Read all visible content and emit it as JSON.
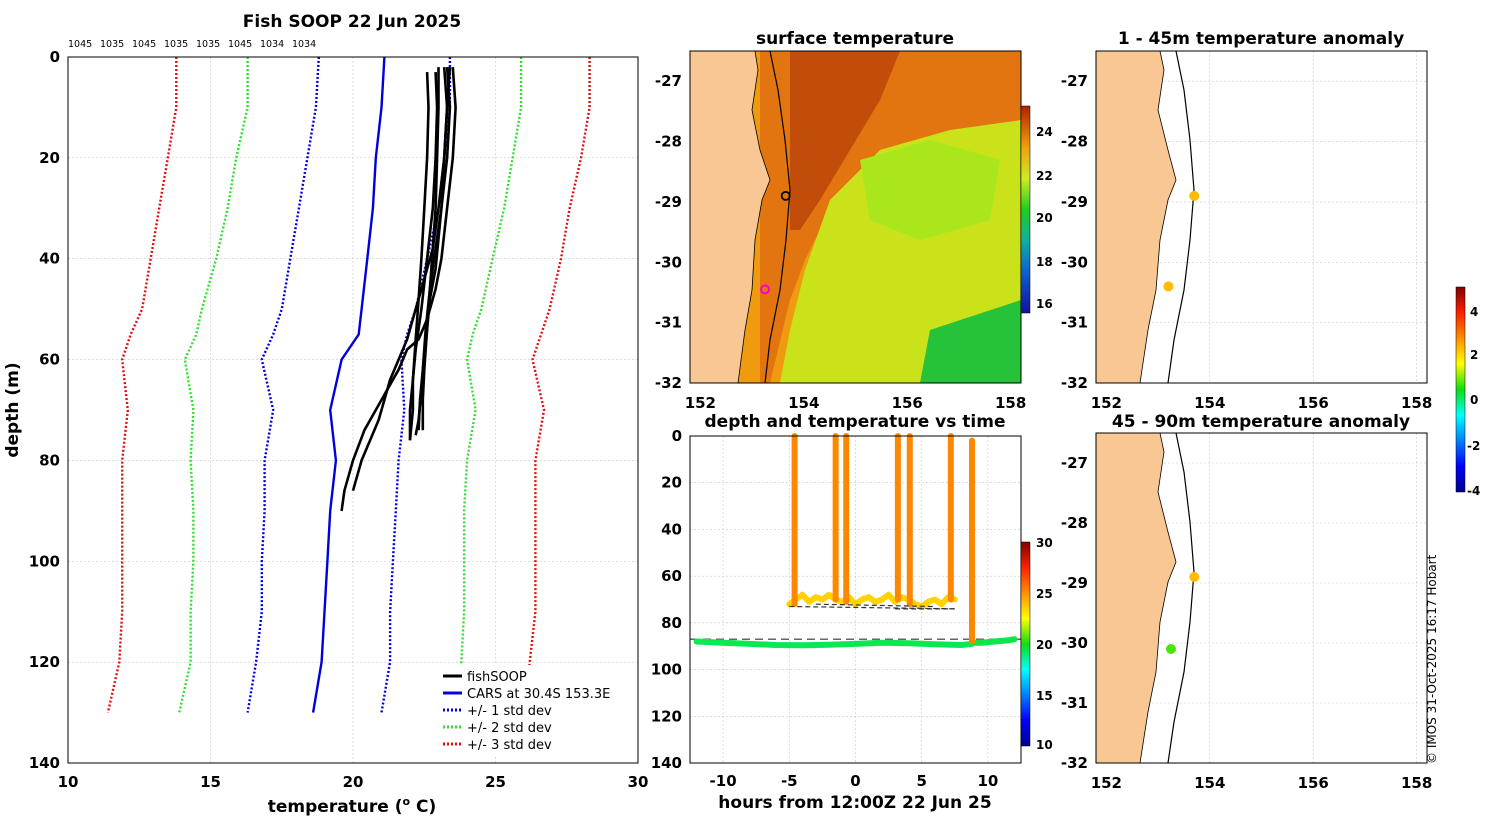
{
  "colors": {
    "land": "#f9c794",
    "grid": "#c8c8c8",
    "cars": "#0000dd",
    "std1": "#0000dd",
    "std2": "#33dd33",
    "std3": "#dd1111",
    "fish": "#000000",
    "pink": "#ff00cc"
  },
  "profile_panel": {
    "title": "Fish SOOP 22 Jun 2025",
    "xlabel": "temperature (",
    "xlabel_sup": "o",
    "xlabel_tail": " C)",
    "ylabel": "depth (m)",
    "top_labels": [
      "1045",
      "1035",
      "1045",
      "1035",
      "1035",
      "1045",
      "1034",
      "1034"
    ],
    "legend": [
      {
        "label": "fishSOOP",
        "style": "fish"
      },
      {
        "label": "CARS at 30.4S 153.3E",
        "style": "cars"
      },
      {
        "label": "+/- 1 std dev",
        "style": "std1"
      },
      {
        "label": "+/- 2 std dev",
        "style": "std2"
      },
      {
        "label": "+/- 3 std dev",
        "style": "std3"
      }
    ]
  },
  "sst_panel": {
    "title": "surface temperature",
    "colorbar_ticks": [
      "24",
      "22",
      "20",
      "18",
      "16"
    ]
  },
  "time_panel": {
    "title": "depth and temperature vs time",
    "xlabel": "hours from 12:00Z 22 Jun 25",
    "colorbar_ticks": [
      "30",
      "25",
      "20",
      "15",
      "10"
    ]
  },
  "anom1_panel": {
    "title": "1 - 45m temperature anomaly"
  },
  "anom2_panel": {
    "title": "45 - 90m temperature anomaly"
  },
  "anom_colorbar": {
    "ticks": [
      "4",
      "2",
      "0",
      "-2",
      "-4"
    ]
  },
  "footer": {
    "credit": "© IMOS 31-Oct-2025 16:17 Hobart"
  },
  "chart_data": [
    {
      "id": "profile",
      "type": "line",
      "title": "Fish SOOP 22 Jun 2025",
      "xlabel": "temperature (o C)",
      "ylabel": "depth (m)",
      "xlim": [
        10,
        30
      ],
      "ylim": [
        140,
        0
      ],
      "xticks": [
        10,
        15,
        20,
        25,
        30
      ],
      "yticks": [
        0,
        20,
        40,
        60,
        80,
        100,
        120,
        140
      ],
      "grid": true,
      "series": [
        {
          "name": "CARS at 30.4S 153.3E",
          "style": "cars",
          "temp": [
            21.1,
            21.0,
            20.8,
            20.7,
            20.5,
            20.3,
            20.2,
            19.6,
            19.2,
            19.4,
            19.2,
            19.1,
            19.0,
            18.9,
            18.6
          ],
          "depth": [
            0,
            10,
            20,
            30,
            40,
            50,
            55,
            60,
            70,
            80,
            90,
            100,
            110,
            120,
            130
          ]
        },
        {
          "name": "-1 std",
          "style": "std1",
          "temp": [
            18.8,
            18.7,
            18.4,
            18.1,
            17.8,
            17.5,
            17.2,
            16.8,
            17.2,
            16.9,
            16.9,
            16.8,
            16.8,
            16.6,
            16.3
          ],
          "depth": [
            0,
            10,
            20,
            30,
            40,
            50,
            55,
            60,
            70,
            80,
            90,
            100,
            110,
            120,
            130
          ]
        },
        {
          "name": "+1 std",
          "style": "std1",
          "temp": [
            23.4,
            23.4,
            23.2,
            23.0,
            22.6,
            22.2,
            21.9,
            21.7,
            21.8,
            21.6,
            21.5,
            21.4,
            21.3,
            21.3,
            21.0
          ],
          "depth": [
            0,
            10,
            20,
            30,
            40,
            50,
            55,
            60,
            70,
            80,
            90,
            100,
            110,
            120,
            130
          ]
        },
        {
          "name": "-2 std",
          "style": "std2",
          "temp": [
            16.3,
            16.3,
            15.9,
            15.6,
            15.2,
            14.7,
            14.5,
            14.1,
            14.4,
            14.3,
            14.4,
            14.4,
            14.3,
            14.3,
            13.9
          ],
          "depth": [
            0,
            10,
            20,
            30,
            40,
            50,
            55,
            60,
            70,
            80,
            90,
            100,
            110,
            120,
            130
          ]
        },
        {
          "name": "+2 std",
          "style": "std2",
          "temp": [
            25.9,
            25.9,
            25.6,
            25.3,
            24.9,
            24.5,
            24.2,
            24.0,
            24.3,
            24.0,
            23.9,
            23.9,
            23.9,
            23.8,
            23.5
          ],
          "depth": [
            0,
            10,
            20,
            30,
            40,
            50,
            55,
            60,
            70,
            80,
            90,
            100,
            110,
            120,
            130
          ]
        },
        {
          "name": "-3 std",
          "style": "std3",
          "temp": [
            13.8,
            13.8,
            13.5,
            13.2,
            12.9,
            12.6,
            12.2,
            11.9,
            12.1,
            11.9,
            11.9,
            11.9,
            11.9,
            11.8,
            11.4
          ],
          "depth": [
            0,
            10,
            20,
            30,
            40,
            50,
            55,
            60,
            70,
            80,
            90,
            100,
            110,
            120,
            130
          ]
        },
        {
          "name": "+3 std",
          "style": "std3",
          "temp": [
            28.3,
            28.3,
            28.0,
            27.6,
            27.3,
            26.9,
            26.6,
            26.3,
            26.7,
            26.4,
            26.4,
            26.4,
            26.4,
            26.2,
            26.0
          ],
          "depth": [
            0,
            10,
            20,
            30,
            40,
            50,
            55,
            60,
            70,
            80,
            90,
            100,
            110,
            120,
            130
          ]
        },
        {
          "name": "fishSOOP",
          "style": "fish",
          "temp": [
            23.4,
            23.3,
            23.2,
            23.1,
            23.0,
            22.9,
            22.7,
            22.6,
            22.5,
            22.4,
            22.3,
            22.2
          ],
          "depth": [
            2,
            10,
            20,
            30,
            36,
            42,
            48,
            54,
            60,
            66,
            72,
            75
          ]
        },
        {
          "name": "fishSOOP",
          "style": "fish",
          "temp": [
            23.0,
            23.0,
            22.95,
            22.9,
            22.8,
            22.7,
            22.6,
            22.5,
            22.45,
            22.45
          ],
          "depth": [
            2,
            10,
            20,
            30,
            38,
            46,
            54,
            62,
            68,
            74
          ]
        },
        {
          "name": "fishSOOP",
          "style": "fish",
          "temp": [
            22.6,
            22.65,
            22.6,
            22.5,
            22.4,
            22.3,
            22.2,
            22.1,
            22.1,
            22.0
          ],
          "depth": [
            3,
            10,
            20,
            30,
            40,
            48,
            56,
            64,
            70,
            76
          ]
        },
        {
          "name": "fishSOOP",
          "style": "fish",
          "temp": [
            23.5,
            23.6,
            23.5,
            23.3,
            23.1,
            22.9,
            22.6,
            22.3,
            21.9,
            21.6,
            21.2,
            20.8,
            20.4,
            20.0,
            19.7,
            19.6
          ],
          "depth": [
            2,
            10,
            20,
            30,
            40,
            46,
            52,
            56,
            58,
            62,
            66,
            70,
            74,
            80,
            86,
            90
          ]
        },
        {
          "name": "fishSOOP",
          "style": "fish",
          "temp": [
            23.2,
            23.3,
            23.2,
            23.0,
            22.8,
            22.5,
            22.2,
            21.9,
            21.6,
            21.3,
            21.1,
            20.9,
            20.6,
            20.3,
            20.0
          ],
          "depth": [
            2,
            10,
            20,
            30,
            38,
            44,
            50,
            56,
            60,
            64,
            68,
            72,
            76,
            80,
            86
          ]
        },
        {
          "name": "fishSOOP",
          "style": "fish",
          "temp": [
            22.9,
            22.95,
            22.9,
            22.8,
            22.6,
            22.4,
            22.2,
            22.1,
            22.0,
            22.0
          ],
          "depth": [
            3,
            10,
            20,
            30,
            40,
            50,
            58,
            64,
            70,
            76
          ]
        },
        {
          "name": "fishSOOP",
          "style": "fish",
          "temp": [
            23.3,
            23.4,
            23.3,
            23.1,
            22.9,
            22.7,
            22.55,
            22.45,
            22.35,
            22.3
          ],
          "depth": [
            2,
            10,
            20,
            30,
            38,
            46,
            54,
            62,
            68,
            74
          ]
        }
      ]
    },
    {
      "id": "sst_map",
      "type": "heatmap",
      "title": "surface temperature",
      "xlim": [
        151.8,
        158.2
      ],
      "ylim": [
        -32,
        -26.5
      ],
      "xticks": [
        152,
        154,
        156,
        158
      ],
      "yticks": [
        -27,
        -28,
        -29,
        -30,
        -31,
        -32
      ],
      "colorbar": [
        15,
        25
      ],
      "markers": [
        {
          "kind": "open-circle",
          "color": "black",
          "lon": 153.65,
          "lat": -28.9
        },
        {
          "kind": "open-circle",
          "color": "magenta",
          "lon": 153.25,
          "lat": -30.45
        }
      ]
    },
    {
      "id": "depth_time",
      "type": "scatter",
      "title": "depth and temperature vs time",
      "xlabel": "hours from 12:00Z 22 Jun 25",
      "xlim": [
        -12.5,
        12.5
      ],
      "ylim": [
        140,
        0
      ],
      "xticks": [
        -10,
        -5,
        0,
        5,
        10
      ],
      "yticks": [
        0,
        20,
        40,
        60,
        80,
        100,
        120,
        140
      ],
      "colorbar": [
        10,
        30
      ],
      "dashed_line_depth": 87,
      "series": [
        {
          "name": "deep track",
          "hours": [
            -12,
            -10,
            -8,
            -6,
            -4,
            -2,
            0,
            2,
            4,
            6,
            8,
            8.8
          ],
          "depth": [
            88,
            88.5,
            89,
            89.5,
            89.6,
            89.4,
            89,
            88.5,
            88.7,
            89.2,
            89.5,
            89
          ],
          "temp": [
            19.3,
            19.3,
            19.3,
            19.3,
            19.3,
            19.3,
            19.3,
            19.3,
            19.3,
            19.3,
            19.3,
            19.3
          ]
        },
        {
          "name": "final track",
          "hours": [
            8.8,
            9.5,
            10.5,
            11.5,
            12
          ],
          "depth": [
            88.5,
            88.5,
            88,
            87.5,
            87
          ],
          "temp": [
            19.4,
            19.4,
            19.4,
            19.4,
            19.4
          ]
        },
        {
          "name": "shallow track",
          "hours": [
            -5,
            -4.5,
            -4,
            -3.5,
            -3,
            -2.5,
            -2,
            -1.5,
            -1,
            -0.5,
            0,
            0.5,
            1,
            1.5,
            2,
            2.5,
            3,
            3.5,
            4,
            4.5,
            5,
            5.5,
            6,
            6.5,
            7,
            7.5
          ],
          "depth": [
            72,
            70,
            68,
            71,
            69,
            70,
            68,
            70,
            71,
            69,
            72,
            70,
            69,
            71,
            70,
            68,
            71,
            69,
            70,
            72,
            73,
            71,
            70,
            72,
            69,
            70
          ],
          "temp": [
            23.5,
            23.6,
            23.8,
            23.6,
            23.8,
            23.7,
            23.9,
            23.7,
            23.6,
            23.8,
            23.5,
            23.7,
            23.8,
            23.6,
            23.7,
            23.9,
            23.6,
            23.8,
            23.7,
            23.5,
            23.4,
            23.6,
            23.7,
            23.5,
            23.8,
            23.7
          ]
        },
        {
          "name": "profile casts",
          "hours": [
            -4.6,
            -1.5,
            -0.7,
            3.2,
            4.1,
            7.2,
            8.8
          ],
          "depth_range": [
            [
              0,
              72
            ],
            [
              0,
              70
            ],
            [
              0,
              71
            ],
            [
              0,
              70
            ],
            [
              0,
              72
            ],
            [
              0,
              70
            ],
            [
              2,
              88
            ]
          ],
          "temp_surface": 25.2
        }
      ],
      "mean_lines": [
        {
          "hours": [
            -5,
            7.5
          ],
          "depth": [
            73,
            74
          ]
        },
        {
          "hours": [
            -3,
            6
          ],
          "depth": [
            72,
            73
          ]
        },
        {
          "hours": [
            3,
            7.5
          ],
          "depth": [
            74,
            74
          ]
        }
      ]
    },
    {
      "id": "anomaly_1_45",
      "type": "scatter",
      "title": "1 - 45m temperature anomaly",
      "xlim": [
        151.8,
        158.2
      ],
      "ylim": [
        -32,
        -26.5
      ],
      "xticks": [
        152,
        154,
        156,
        158
      ],
      "yticks": [
        -27,
        -28,
        -29,
        -30,
        -31,
        -32
      ],
      "points": [
        {
          "lon": 153.7,
          "lat": -28.9,
          "anomaly": 2.0
        },
        {
          "lon": 153.2,
          "lat": -30.4,
          "anomaly": 2.0
        }
      ]
    },
    {
      "id": "anomaly_45_90",
      "type": "scatter",
      "title": "45 - 90m temperature anomaly",
      "xlim": [
        151.8,
        158.2
      ],
      "ylim": [
        -32,
        -26.5
      ],
      "xticks": [
        152,
        154,
        156,
        158
      ],
      "yticks": [
        -27,
        -28,
        -29,
        -30,
        -31,
        -32
      ],
      "points": [
        {
          "lon": 153.7,
          "lat": -28.9,
          "anomaly": 2.0
        },
        {
          "lon": 153.25,
          "lat": -30.1,
          "anomaly": 0.3
        }
      ]
    }
  ]
}
